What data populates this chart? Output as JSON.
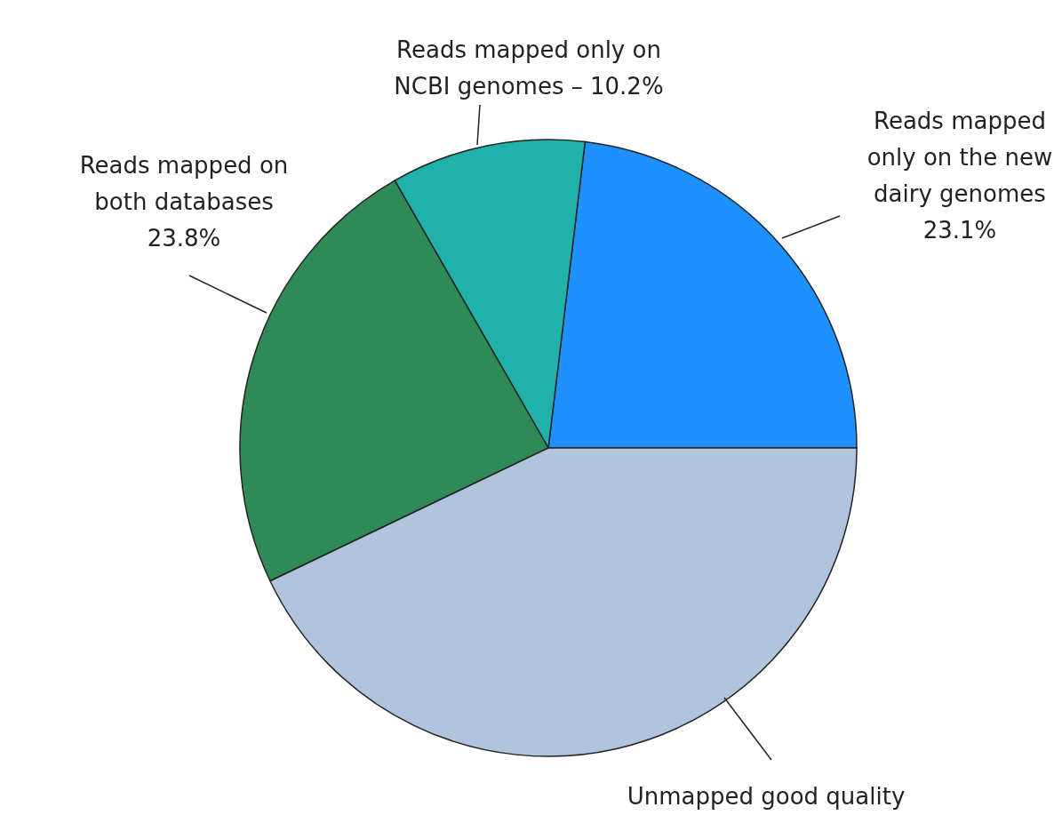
{
  "chart_data": {
    "type": "pie",
    "categories": [
      "Reads mapped only on the new dairy genomes",
      "Reads mapped only on NCBI genomes –",
      "Reads mapped on both databases",
      "Unmapped good quality"
    ],
    "values": [
      23.1,
      10.2,
      23.8,
      42.9
    ],
    "value_labels": [
      "23.1%",
      "10.2%",
      "23.8%",
      null
    ],
    "colors": [
      "#1e90ff",
      "#20b2aa",
      "#2e8b57",
      "#b0c4de"
    ]
  }
}
